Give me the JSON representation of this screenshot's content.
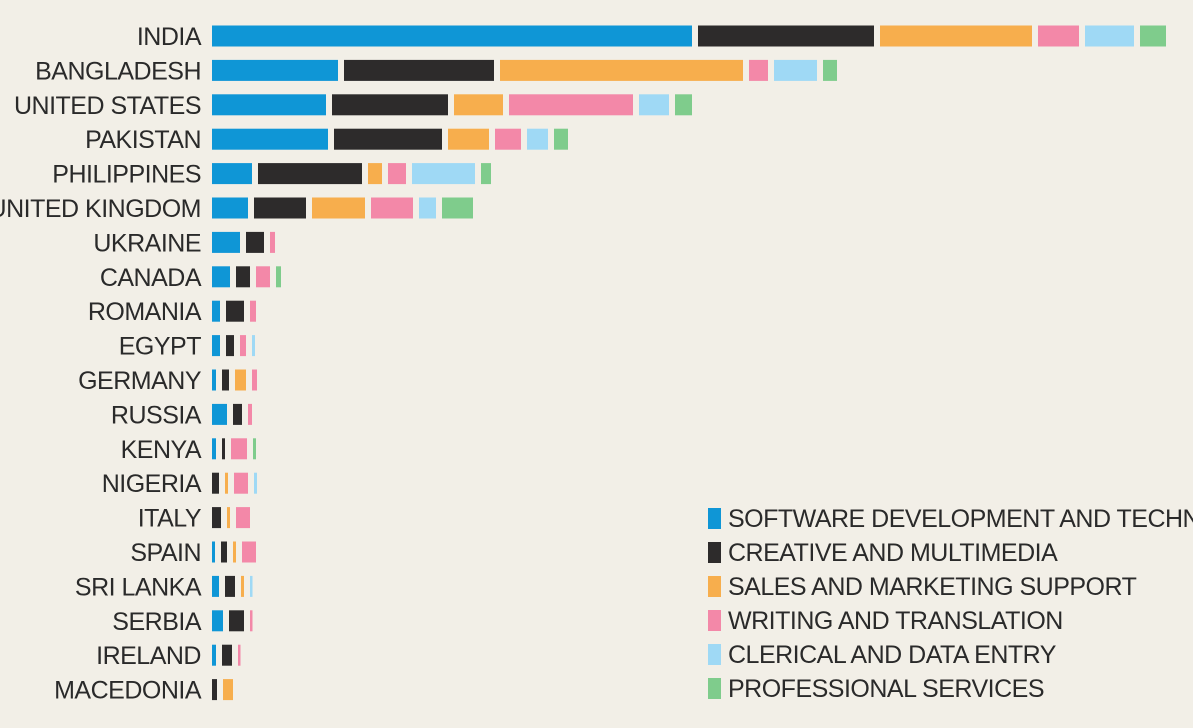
{
  "chart_data": {
    "type": "bar",
    "orientation": "horizontal",
    "stacked": true,
    "title": "",
    "xlabel": "",
    "ylabel": "",
    "grid": false,
    "legend_position": "bottom-right",
    "categories": [
      "INDIA",
      "BANGLADESH",
      "UNITED STATES",
      "PAKISTAN",
      "PHILIPPINES",
      "UNITED KINGDOM",
      "UKRAINE",
      "CANADA",
      "ROMANIA",
      "EGYPT",
      "GERMANY",
      "RUSSIA",
      "KENYA",
      "NIGERIA",
      "ITALY",
      "SPAIN",
      "SRI LANKA",
      "SERBIA",
      "IRELAND",
      "MACEDONIA"
    ],
    "series": [
      {
        "name": "SOFTWARE DEVELOPMENT AND TECHNOLOGY",
        "color": "#0f96d6",
        "values": [
          480,
          126,
          114,
          116,
          40,
          36,
          28,
          18,
          8,
          8,
          4,
          15,
          4,
          0,
          0,
          3,
          7,
          11,
          4,
          0
        ]
      },
      {
        "name": "CREATIVE AND MULTIMEDIA",
        "color": "#2d2b2b",
        "values": [
          176,
          150,
          116,
          108,
          104,
          52,
          18,
          14,
          18,
          8,
          7,
          9,
          3,
          7,
          9,
          6,
          10,
          15,
          10,
          5
        ]
      },
      {
        "name": "SALES AND MARKETING SUPPORT",
        "color": "#f7ae4d",
        "values": [
          152,
          243,
          49,
          41,
          14,
          53,
          0,
          0,
          0,
          0,
          11,
          0,
          0,
          3,
          3,
          3,
          3,
          0,
          0,
          10
        ]
      },
      {
        "name": "WRITING AND TRANSLATION",
        "color": "#f388a8",
        "values": [
          41,
          19,
          124,
          26,
          18,
          42,
          5,
          14,
          6,
          6,
          5,
          4,
          16,
          14,
          14,
          14,
          0,
          2,
          2,
          0
        ]
      },
      {
        "name": "CLERICAL AND DATA ENTRY",
        "color": "#9fd9f5",
        "values": [
          49,
          43,
          30,
          21,
          63,
          17,
          0,
          0,
          0,
          3,
          0,
          0,
          0,
          3,
          0,
          0,
          2,
          0,
          0,
          0
        ]
      },
      {
        "name": "PROFESSIONAL SERVICES",
        "color": "#7fcc8c",
        "values": [
          26,
          14,
          17,
          14,
          10,
          31,
          0,
          5,
          0,
          0,
          0,
          0,
          3,
          0,
          0,
          0,
          0,
          0,
          0,
          0
        ]
      }
    ]
  }
}
